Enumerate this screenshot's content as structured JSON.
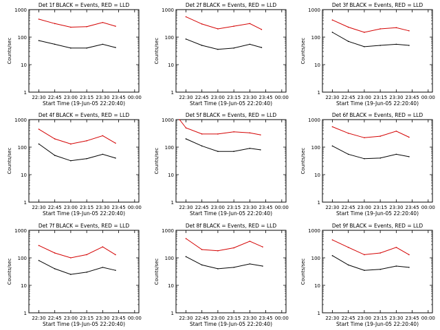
{
  "chart_data": [
    {
      "type": "line",
      "title": "Det 1f BLACK = Events, RED = LLD",
      "xlabel": "Start Time (19-Jun-05 22:20:40)",
      "ylabel": "Counts/sec",
      "y_scale": "log",
      "ylim": [
        1,
        1000
      ],
      "x_ticks": [
        "22:30",
        "22:45",
        "23:00",
        "23:15",
        "23:30",
        "23:45",
        "00:00"
      ],
      "y_ticks": [
        "1",
        "10",
        "100",
        "1000"
      ],
      "series": [
        {
          "color": "#d40000",
          "x": [
            "22:30",
            "22:45",
            "23:00",
            "23:15",
            "23:30",
            "23:42"
          ],
          "y": [
            450,
            310,
            230,
            240,
            340,
            250
          ]
        },
        {
          "color": "#000000",
          "x": [
            "22:30",
            "22:45",
            "23:00",
            "23:15",
            "23:30",
            "23:42"
          ],
          "y": [
            75,
            55,
            40,
            40,
            55,
            42
          ]
        }
      ]
    },
    {
      "type": "line",
      "title": "Det 2f BLACK = Events, RED = LLD",
      "xlabel": "Start Time (19-Jun-05 22:20:40)",
      "ylabel": "Counts/sec",
      "y_scale": "log",
      "ylim": [
        1,
        1000
      ],
      "x_ticks": [
        "22:30",
        "22:45",
        "23:00",
        "23:15",
        "23:30",
        "23:45",
        "00:00"
      ],
      "y_ticks": [
        "1",
        "10",
        "100",
        "1000"
      ],
      "series": [
        {
          "color": "#d40000",
          "x": [
            "22:30",
            "22:45",
            "23:00",
            "23:15",
            "23:30",
            "23:41"
          ],
          "y": [
            550,
            300,
            200,
            250,
            310,
            190
          ]
        },
        {
          "color": "#000000",
          "x": [
            "22:30",
            "22:45",
            "23:00",
            "23:15",
            "23:30",
            "23:41"
          ],
          "y": [
            85,
            50,
            36,
            40,
            55,
            42
          ]
        }
      ]
    },
    {
      "type": "line",
      "title": "Det 3f BLACK = Events, RED = LLD",
      "xlabel": "Start Time (19-Jun-05 22:20:40)",
      "ylabel": "Counts/sec",
      "y_scale": "log",
      "ylim": [
        1,
        1000
      ],
      "x_ticks": [
        "22:30",
        "22:45",
        "23:00",
        "23:15",
        "23:30",
        "23:45",
        "00:00"
      ],
      "y_ticks": [
        "1",
        "10",
        "100",
        "1000"
      ],
      "series": [
        {
          "color": "#d40000",
          "x": [
            "22:30",
            "22:45",
            "23:00",
            "23:15",
            "23:30",
            "23:42"
          ],
          "y": [
            420,
            230,
            150,
            200,
            220,
            170
          ]
        },
        {
          "color": "#000000",
          "x": [
            "22:30",
            "22:45",
            "23:00",
            "23:15",
            "23:30",
            "23:42"
          ],
          "y": [
            150,
            70,
            45,
            50,
            55,
            50
          ]
        }
      ]
    },
    {
      "type": "line",
      "title": "Det 4f BLACK = Events, RED = LLD",
      "xlabel": "Start Time (19-Jun-05 22:20:40)",
      "ylabel": "Counts/sec",
      "y_scale": "log",
      "ylim": [
        1,
        1000
      ],
      "x_ticks": [
        "22:30",
        "22:45",
        "23:00",
        "23:15",
        "23:30",
        "23:45",
        "00:00"
      ],
      "y_ticks": [
        "1",
        "10",
        "100",
        "1000"
      ],
      "series": [
        {
          "color": "#d40000",
          "x": [
            "22:30",
            "22:45",
            "23:00",
            "23:15",
            "23:30",
            "23:42"
          ],
          "y": [
            450,
            200,
            130,
            170,
            260,
            140
          ]
        },
        {
          "color": "#000000",
          "x": [
            "22:30",
            "22:45",
            "23:00",
            "23:15",
            "23:30",
            "23:42"
          ],
          "y": [
            130,
            50,
            32,
            38,
            55,
            40
          ]
        }
      ]
    },
    {
      "type": "line",
      "title": "Det 5f BLACK = Events, RED = LLD",
      "xlabel": "Start Time (19-Jun-05 22:20:40)",
      "ylabel": "Counts/sec",
      "y_scale": "log",
      "ylim": [
        1,
        1000
      ],
      "x_ticks": [
        "22:30",
        "22:45",
        "23:00",
        "23:15",
        "23:30",
        "23:45",
        "00:00"
      ],
      "y_ticks": [
        "1",
        "10",
        "100",
        "1000"
      ],
      "series": [
        {
          "color": "#d40000",
          "x": [
            "22:24",
            "22:30",
            "22:45",
            "23:00",
            "23:15",
            "23:30",
            "23:40"
          ],
          "y": [
            1000,
            500,
            300,
            300,
            360,
            330,
            280
          ]
        },
        {
          "color": "#000000",
          "x": [
            "22:30",
            "22:45",
            "23:00",
            "23:15",
            "23:30",
            "23:40"
          ],
          "y": [
            200,
            110,
            70,
            70,
            90,
            80
          ]
        }
      ]
    },
    {
      "type": "line",
      "title": "Det 6f BLACK = Events, RED = LLD",
      "xlabel": "Start Time (19-Jun-05 22:20:40)",
      "ylabel": "Counts/sec",
      "y_scale": "log",
      "ylim": [
        1,
        1000
      ],
      "x_ticks": [
        "22:30",
        "22:45",
        "23:00",
        "23:15",
        "23:30",
        "23:45",
        "00:00"
      ],
      "y_ticks": [
        "1",
        "10",
        "100",
        "1000"
      ],
      "series": [
        {
          "color": "#d40000",
          "x": [
            "22:30",
            "22:45",
            "23:00",
            "23:15",
            "23:30",
            "23:42"
          ],
          "y": [
            550,
            320,
            220,
            250,
            380,
            230
          ]
        },
        {
          "color": "#000000",
          "x": [
            "22:30",
            "22:45",
            "23:00",
            "23:15",
            "23:30",
            "23:42"
          ],
          "y": [
            110,
            55,
            38,
            40,
            55,
            45
          ]
        }
      ]
    },
    {
      "type": "line",
      "title": "Det 7f BLACK = Events, RED = LLD",
      "xlabel": "Start Time (19-Jun-05 22:20:40)",
      "ylabel": "Counts/sec",
      "y_scale": "log",
      "ylim": [
        1,
        1000
      ],
      "x_ticks": [
        "22:30",
        "22:45",
        "23:00",
        "23:15",
        "23:30",
        "23:45",
        "00:00"
      ],
      "y_ticks": [
        "1",
        "10",
        "100",
        "1000"
      ],
      "series": [
        {
          "color": "#d40000",
          "x": [
            "22:30",
            "22:45",
            "23:00",
            "23:15",
            "23:30",
            "23:42"
          ],
          "y": [
            280,
            150,
            100,
            130,
            250,
            130
          ]
        },
        {
          "color": "#000000",
          "x": [
            "22:30",
            "22:45",
            "23:00",
            "23:15",
            "23:30",
            "23:42"
          ],
          "y": [
            80,
            40,
            25,
            30,
            45,
            35
          ]
        }
      ]
    },
    {
      "type": "line",
      "title": "Det 8f BLACK = Events, RED = LLD",
      "xlabel": "Start Time (19-Jun-05 22:20:40)",
      "ylabel": "Counts/sec",
      "y_scale": "log",
      "ylim": [
        1,
        1000
      ],
      "x_ticks": [
        "22:30",
        "22:45",
        "23:00",
        "23:15",
        "23:30",
        "23:45",
        "00:00"
      ],
      "y_ticks": [
        "1",
        "10",
        "100",
        "1000"
      ],
      "series": [
        {
          "color": "#d40000",
          "x": [
            "22:30",
            "22:45",
            "23:00",
            "23:15",
            "23:30",
            "23:42"
          ],
          "y": [
            500,
            200,
            180,
            230,
            400,
            250
          ]
        },
        {
          "color": "#000000",
          "x": [
            "22:30",
            "22:45",
            "23:00",
            "23:15",
            "23:30",
            "23:42"
          ],
          "y": [
            110,
            55,
            40,
            45,
            60,
            50
          ]
        }
      ]
    },
    {
      "type": "line",
      "title": "Det 9f BLACK = Events, RED = LLD",
      "xlabel": "Start Time (19-Jun-05 22:20:40)",
      "ylabel": "Counts/sec",
      "y_scale": "log",
      "ylim": [
        1,
        1000
      ],
      "x_ticks": [
        "22:30",
        "22:45",
        "23:00",
        "23:15",
        "23:30",
        "23:45",
        "00:00"
      ],
      "y_ticks": [
        "1",
        "10",
        "100",
        "1000"
      ],
      "series": [
        {
          "color": "#d40000",
          "x": [
            "22:30",
            "22:45",
            "23:00",
            "23:15",
            "23:30",
            "23:42"
          ],
          "y": [
            450,
            240,
            130,
            150,
            240,
            130
          ]
        },
        {
          "color": "#000000",
          "x": [
            "22:30",
            "22:45",
            "23:00",
            "23:15",
            "23:30",
            "23:42"
          ],
          "y": [
            120,
            55,
            35,
            38,
            50,
            45
          ]
        }
      ]
    }
  ]
}
